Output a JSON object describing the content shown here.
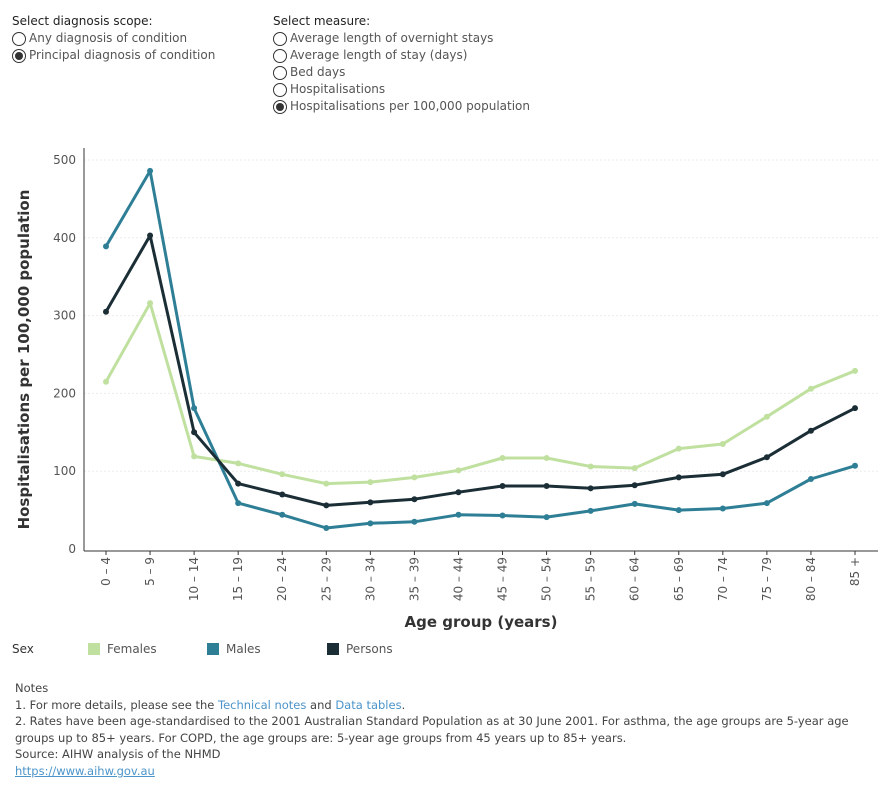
{
  "controls": {
    "scope": {
      "title": "Select diagnosis scope:",
      "options": [
        "Any diagnosis of condition",
        "Principal diagnosis of condition"
      ],
      "selected": 1
    },
    "measure": {
      "title": "Select measure:",
      "options": [
        "Average length of overnight stays",
        "Average length of stay (days)",
        "Bed days",
        "Hospitalisations",
        "Hospitalisations per 100,000 population"
      ],
      "selected": 4
    }
  },
  "chart_data": {
    "type": "line",
    "title": "",
    "xlabel": "Age group (years)",
    "ylabel": "Hospitalisations per 100,000 population",
    "ylim": [
      0,
      500
    ],
    "yticks": [
      "0",
      "100",
      "200",
      "300",
      "400",
      "500"
    ],
    "grid": true,
    "legend_position": "bottom",
    "categories": [
      "0 – 4",
      "5 – 9",
      "10 – 14",
      "15 – 19",
      "20 – 24",
      "25 – 29",
      "30 – 34",
      "35 – 39",
      "40 – 44",
      "45 – 49",
      "50 – 54",
      "55 – 59",
      "60 – 64",
      "65 – 69",
      "70 – 74",
      "75 – 79",
      "80 – 84",
      "85 +"
    ],
    "series": [
      {
        "name": "Females",
        "color": "#c0e0a0",
        "values": [
          215,
          316,
          119,
          110,
          96,
          84,
          86,
          92,
          101,
          117,
          117,
          106,
          104,
          129,
          135,
          170,
          206,
          229
        ]
      },
      {
        "name": "Males",
        "color": "#2e7f96",
        "values": [
          389,
          486,
          181,
          59,
          44,
          27,
          33,
          35,
          44,
          43,
          41,
          49,
          58,
          50,
          52,
          59,
          90,
          107
        ]
      },
      {
        "name": "Persons",
        "color": "#1b2e36",
        "values": [
          305,
          403,
          150,
          84,
          70,
          56,
          60,
          64,
          73,
          81,
          81,
          78,
          82,
          92,
          96,
          118,
          152,
          181
        ]
      }
    ]
  },
  "legend": {
    "title": "Sex",
    "items": [
      {
        "label": "Females",
        "color": "#c0e0a0"
      },
      {
        "label": "Males",
        "color": "#2e7f96"
      },
      {
        "label": "Persons",
        "color": "#1b2e36"
      }
    ]
  },
  "notes": {
    "heading": "Notes",
    "line1_prefix": "1. For more details, please see the ",
    "technical_notes_link": "Technical notes",
    "line1_and": " and ",
    "data_tables_link": "Data tables",
    "line1_suffix": ".",
    "line2": "2. Rates have been age-standardised to the 2001 Australian Standard Population as at 30 June 2001. For asthma, the age groups are 5-year age groups up to 85+ years.  For COPD, the age groups are: 5-year age groups from 45 years up to 85+ years.",
    "source": "Source: AIHW analysis of the NHMD",
    "url": "https://www.aihw.gov.au"
  }
}
